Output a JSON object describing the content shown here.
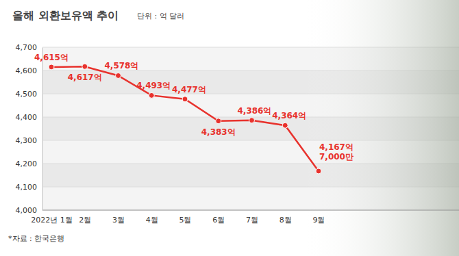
{
  "chart_data": {
    "type": "line",
    "title": "올해 외환보유액 추이",
    "subtitle": "단위 : 억 달러",
    "source": "*자료 : 한국은행",
    "categories": [
      "2022년 1월",
      "2월",
      "3월",
      "4월",
      "5월",
      "6월",
      "7월",
      "8월",
      "9월"
    ],
    "values": [
      4615,
      4617,
      4578,
      4493,
      4477,
      4383,
      4386,
      4364,
      4167.7
    ],
    "value_labels": [
      "4,615억",
      "4,617억",
      "4,578억",
      "4,493억",
      "4,477억",
      "4,383억",
      "4,386억",
      "4,364억",
      "4,167억 7,000만"
    ],
    "color": "#e8322d",
    "marker": "circle",
    "data_labels": true,
    "grid": true,
    "ylim": [
      4000,
      4700
    ],
    "yticks": [
      {
        "value": 4000,
        "label": "4,000"
      },
      {
        "value": 4100,
        "label": "4,100"
      },
      {
        "value": 4200,
        "label": "4,200"
      },
      {
        "value": 4300,
        "label": "4,300"
      },
      {
        "value": 4400,
        "label": "4,400"
      },
      {
        "value": 4500,
        "label": "4,500"
      },
      {
        "value": 4600,
        "label": "4,600"
      },
      {
        "value": 4700,
        "label": "4,700"
      }
    ]
  }
}
